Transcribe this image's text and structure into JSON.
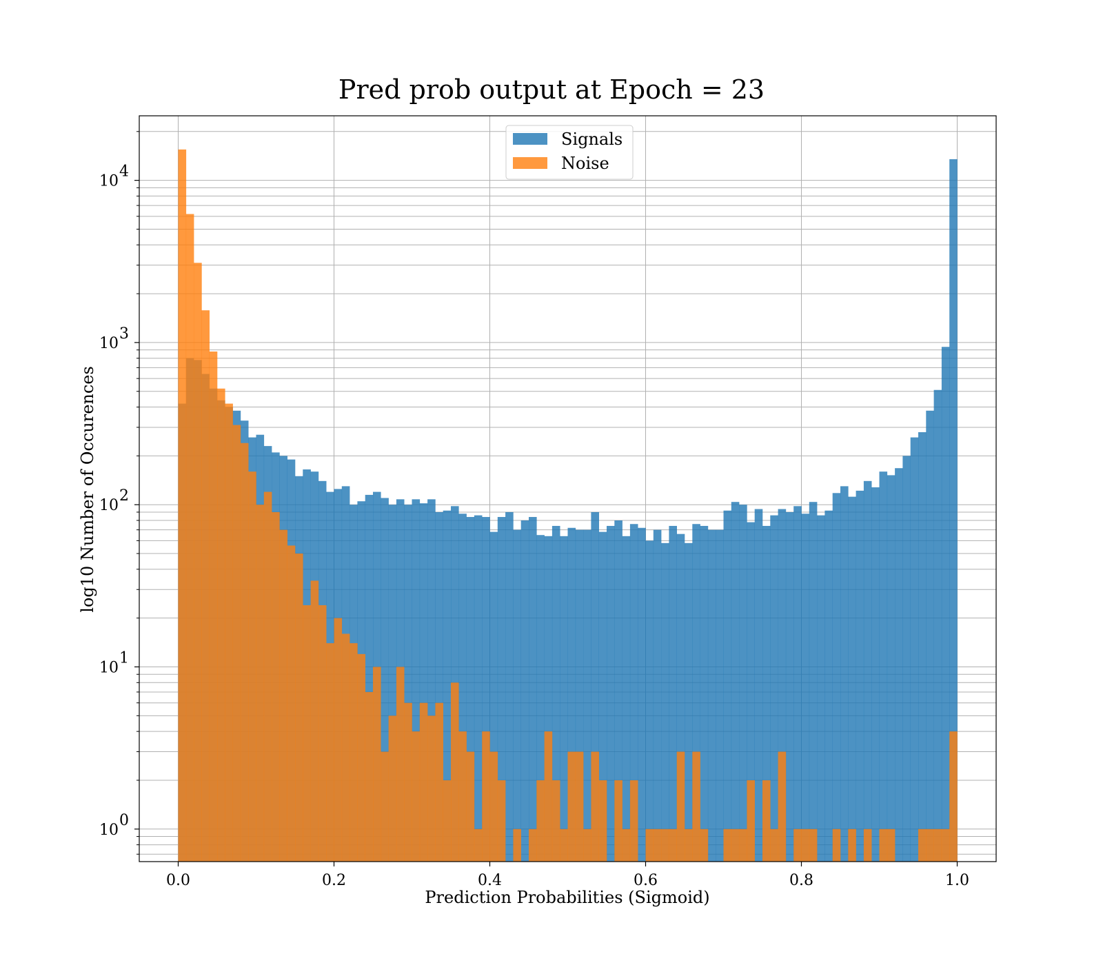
{
  "chart_data": {
    "type": "bar",
    "histogram": true,
    "title": "Pred prob output at Epoch = 23",
    "xlabel": "Prediction Probabilities (Sigmoid)",
    "ylabel": "log10 Number of Occurences",
    "yscale": "log",
    "xlim": [
      -0.05,
      1.05
    ],
    "ylim": [
      0.63,
      25000
    ],
    "bin_width": 0.01,
    "x_bin_start": 0.0,
    "xticks": [
      0.0,
      0.2,
      0.4,
      0.6,
      0.8,
      1.0
    ],
    "xtick_labels": [
      "0.0",
      "0.2",
      "0.4",
      "0.6",
      "0.8",
      "1.0"
    ],
    "ytick_base_labels": [
      "10",
      "10",
      "10",
      "10",
      "10"
    ],
    "ytick_exponents": [
      "0",
      "1",
      "2",
      "3",
      "4"
    ],
    "yticks": [
      1,
      10,
      100,
      1000,
      10000
    ],
    "grid": true,
    "legend_position": "upper center",
    "series": [
      {
        "name": "Signals",
        "color": "#1f77b4",
        "alpha": 0.8,
        "values": [
          420,
          800,
          780,
          640,
          520,
          440,
          400,
          380,
          330,
          260,
          270,
          230,
          210,
          200,
          190,
          150,
          165,
          160,
          140,
          120,
          125,
          130,
          100,
          105,
          115,
          120,
          110,
          100,
          108,
          100,
          108,
          102,
          108,
          90,
          92,
          98,
          88,
          84,
          86,
          84,
          68,
          84,
          90,
          70,
          80,
          84,
          65,
          64,
          74,
          64,
          72,
          70,
          70,
          90,
          68,
          74,
          80,
          64,
          76,
          72,
          60,
          70,
          58,
          74,
          66,
          58,
          76,
          74,
          70,
          70,
          92,
          104,
          100,
          78,
          94,
          74,
          86,
          94,
          90,
          98,
          88,
          104,
          86,
          92,
          118,
          130,
          112,
          122,
          140,
          128,
          160,
          152,
          168,
          200,
          260,
          280,
          380,
          510,
          940,
          13500
        ]
      },
      {
        "name": "Noise",
        "color": "#ff7f0e",
        "alpha": 0.8,
        "values": [
          15500,
          6200,
          3100,
          1580,
          880,
          520,
          420,
          310,
          240,
          160,
          100,
          120,
          90,
          70,
          56,
          50,
          24,
          34,
          24,
          14,
          20,
          16,
          14,
          12,
          7,
          10,
          3,
          5,
          10,
          6,
          4,
          6,
          5,
          6,
          2,
          8,
          4,
          3,
          1,
          4,
          3,
          2,
          0,
          1,
          0,
          1,
          2,
          4,
          2,
          1,
          3,
          3,
          1,
          3,
          2,
          0,
          2,
          1,
          2,
          0,
          1,
          1,
          1,
          1,
          3,
          1,
          3,
          1,
          0,
          0,
          1,
          1,
          1,
          2,
          0,
          2,
          1,
          3,
          0,
          1,
          1,
          1,
          0,
          0,
          1,
          0,
          1,
          0,
          1,
          0,
          1,
          1,
          0,
          0,
          0,
          1,
          1,
          1,
          1,
          4
        ]
      }
    ]
  }
}
